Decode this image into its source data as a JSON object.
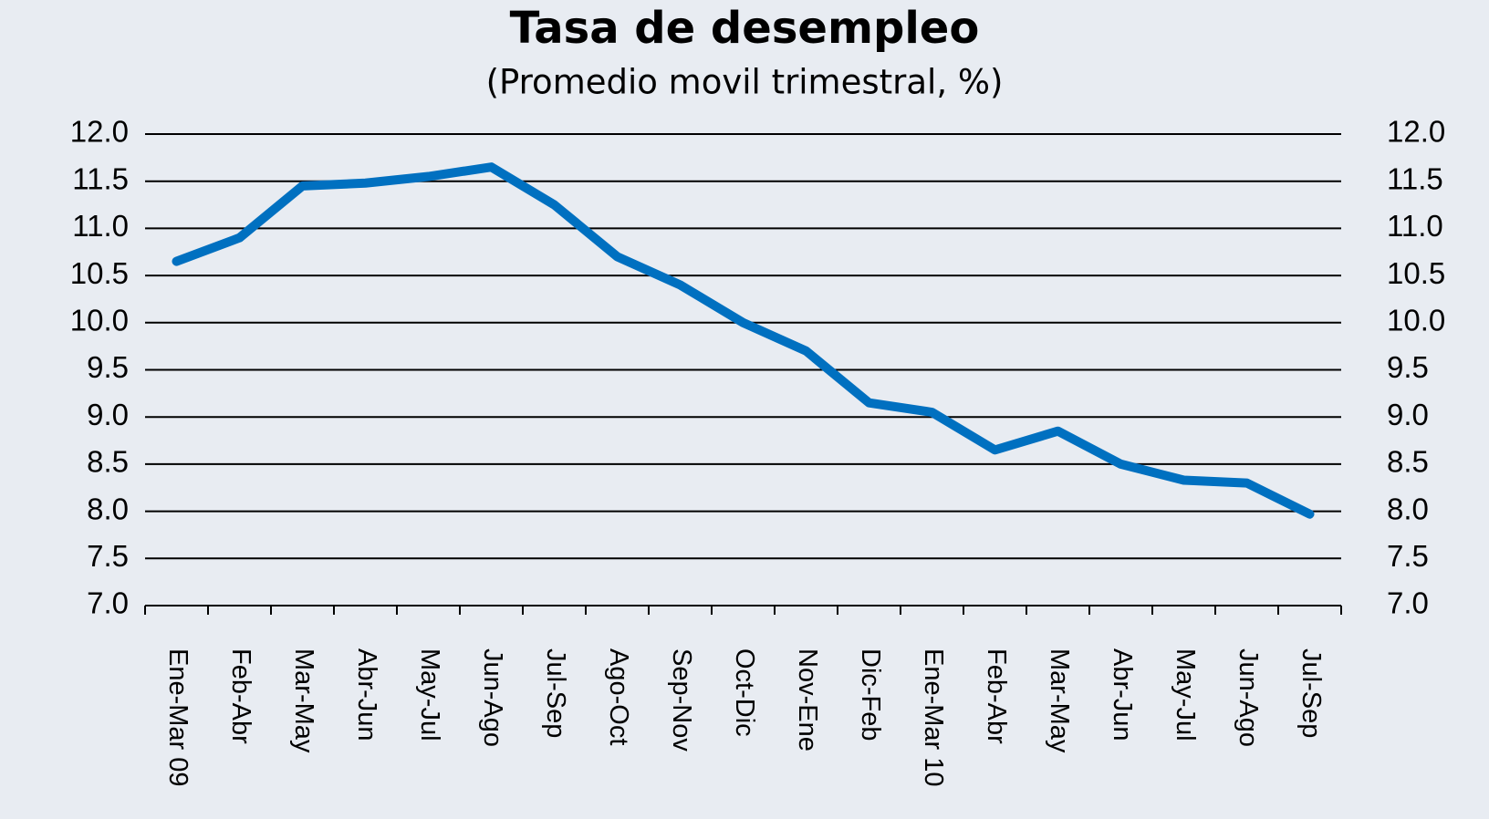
{
  "chart_data": {
    "type": "line",
    "title": "Tasa de desempleo",
    "subtitle": "(Promedio movil trimestral, %)",
    "categories": [
      "Ene-Mar 09",
      "Feb-Abr",
      "Mar-May",
      "Abr-Jun",
      "May-Jul",
      "Jun-Ago",
      "Jul-Sep",
      "Ago-Oct",
      "Sep-Nov",
      "Oct-Dic",
      "Nov-Ene",
      "Dic-Feb",
      "Ene-Mar 10",
      "Feb-Abr",
      "Mar-May",
      "Abr-Jun",
      "May-Jul",
      "Jun-Ago",
      "Jul-Sep"
    ],
    "series": [
      {
        "name": "Tasa de desempleo",
        "color": "#0070c0",
        "values": [
          10.65,
          10.9,
          11.45,
          11.48,
          11.55,
          11.65,
          11.25,
          10.7,
          10.4,
          10.0,
          9.7,
          9.15,
          9.05,
          8.65,
          8.85,
          8.5,
          8.33,
          8.3,
          7.97
        ]
      }
    ],
    "ylim": [
      7.0,
      12.0
    ],
    "yticks": [
      {
        "value": 7.0,
        "label": "7.0"
      },
      {
        "value": 7.5,
        "label": "7.5"
      },
      {
        "value": 8.0,
        "label": "8.0"
      },
      {
        "value": 8.5,
        "label": "8.5"
      },
      {
        "value": 9.0,
        "label": "9.0"
      },
      {
        "value": 9.5,
        "label": "9.5"
      },
      {
        "value": 10.0,
        "label": "10.0"
      },
      {
        "value": 10.5,
        "label": "10.5"
      },
      {
        "value": 11.0,
        "label": "11.0"
      },
      {
        "value": 11.5,
        "label": "11.5"
      },
      {
        "value": 12.0,
        "label": "12.0"
      }
    ],
    "grid": true
  }
}
